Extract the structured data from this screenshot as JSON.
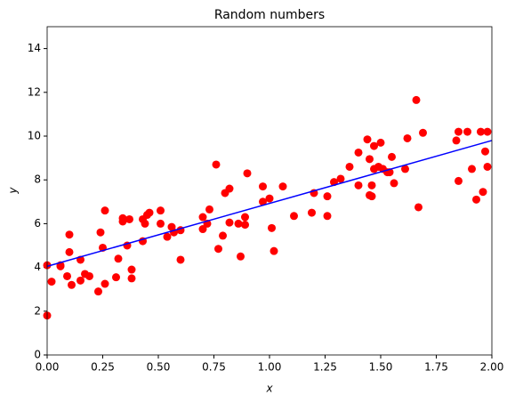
{
  "chart_data": {
    "type": "scatter",
    "title": "Random numbers",
    "xlabel": "x",
    "ylabel": "y",
    "xlim": [
      0,
      2
    ],
    "ylim": [
      0,
      15
    ],
    "xticks": [
      {
        "value": 0,
        "label": "0.00"
      },
      {
        "value": 0.25,
        "label": "0.25"
      },
      {
        "value": 0.5,
        "label": "0.50"
      },
      {
        "value": 0.75,
        "label": "0.75"
      },
      {
        "value": 1,
        "label": "1.00"
      },
      {
        "value": 1.25,
        "label": "1.25"
      },
      {
        "value": 1.5,
        "label": "1.50"
      },
      {
        "value": 1.75,
        "label": "1.75"
      },
      {
        "value": 2,
        "label": "2.00"
      }
    ],
    "yticks": [
      0,
      2,
      4,
      6,
      8,
      10,
      12,
      14
    ],
    "series": [
      {
        "type": "scatter",
        "color": "#ff0000",
        "x": [
          0.0,
          0.0,
          0.02,
          0.06,
          0.06,
          0.09,
          0.1,
          0.1,
          0.11,
          0.15,
          0.15,
          0.17,
          0.19,
          0.23,
          0.24,
          0.25,
          0.26,
          0.26,
          0.31,
          0.32,
          0.34,
          0.34,
          0.36,
          0.37,
          0.38,
          0.38,
          0.43,
          0.43,
          0.44,
          0.45,
          0.46,
          0.51,
          0.51,
          0.54,
          0.56,
          0.57,
          0.6,
          0.6,
          0.7,
          0.7,
          0.72,
          0.73,
          0.76,
          0.77,
          0.79,
          0.8,
          0.82,
          0.82,
          0.86,
          0.87,
          0.89,
          0.89,
          0.9,
          0.97,
          0.97,
          1.0,
          1.01,
          1.02,
          1.06,
          1.11,
          1.19,
          1.2,
          1.26,
          1.26,
          1.29,
          1.32,
          1.36,
          1.4,
          1.4,
          1.44,
          1.45,
          1.45,
          1.46,
          1.46,
          1.47,
          1.47,
          1.49,
          1.5,
          1.51,
          1.53,
          1.54,
          1.55,
          1.56,
          1.61,
          1.62,
          1.66,
          1.67,
          1.69,
          1.84,
          1.85,
          1.85,
          1.89,
          1.91,
          1.93,
          1.95,
          1.96,
          1.97,
          1.98,
          1.98
        ],
        "values": [
          4.1,
          1.8,
          3.35,
          4.05,
          4.1,
          3.6,
          4.7,
          5.5,
          3.2,
          3.4,
          4.35,
          3.7,
          3.6,
          2.9,
          5.6,
          4.9,
          3.25,
          6.6,
          3.55,
          4.4,
          6.25,
          6.1,
          5.0,
          6.2,
          3.5,
          3.9,
          5.2,
          6.2,
          6.0,
          6.4,
          6.5,
          6.0,
          6.6,
          5.4,
          5.85,
          5.6,
          5.7,
          4.35,
          6.3,
          5.75,
          6.0,
          6.65,
          8.7,
          4.85,
          5.45,
          7.4,
          7.6,
          6.05,
          6.0,
          4.5,
          6.3,
          5.95,
          8.3,
          7.0,
          7.7,
          7.15,
          5.8,
          4.75,
          7.7,
          6.35,
          6.5,
          7.4,
          7.25,
          6.35,
          7.9,
          8.05,
          8.6,
          7.75,
          9.25,
          9.85,
          7.3,
          8.95,
          7.25,
          7.75,
          9.55,
          8.5,
          8.6,
          9.7,
          8.5,
          8.35,
          8.35,
          9.05,
          7.85,
          8.5,
          9.9,
          11.65,
          6.75,
          10.15,
          9.8,
          10.2,
          7.95,
          10.2,
          8.5,
          7.1,
          10.2,
          7.45,
          9.3,
          10.2,
          8.6
        ]
      },
      {
        "type": "line",
        "color": "#0000ff",
        "x": [
          0,
          2
        ],
        "values": [
          4.05,
          9.8
        ]
      }
    ]
  }
}
